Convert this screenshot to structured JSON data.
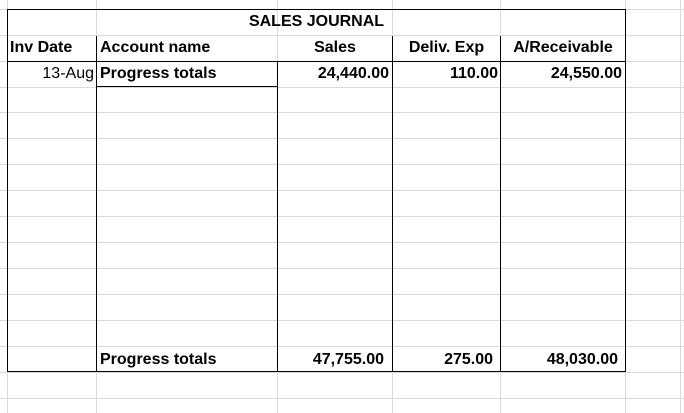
{
  "journal": {
    "title": "SALES JOURNAL",
    "headers": {
      "inv_date": "Inv Date",
      "account_name": "Account name",
      "sales": "Sales",
      "deliv_exp": "Deliv. Exp",
      "receivable": "A/Receivable"
    },
    "opening_row": {
      "inv_date": "13-Aug",
      "account_name": "Progress totals",
      "sales": "24,440.00",
      "deliv_exp": "110.00",
      "receivable": "24,550.00"
    },
    "closing_row": {
      "account_name": "Progress totals",
      "sales": "47,755.00",
      "deliv_exp": "275.00",
      "receivable": "48,030.00"
    }
  }
}
